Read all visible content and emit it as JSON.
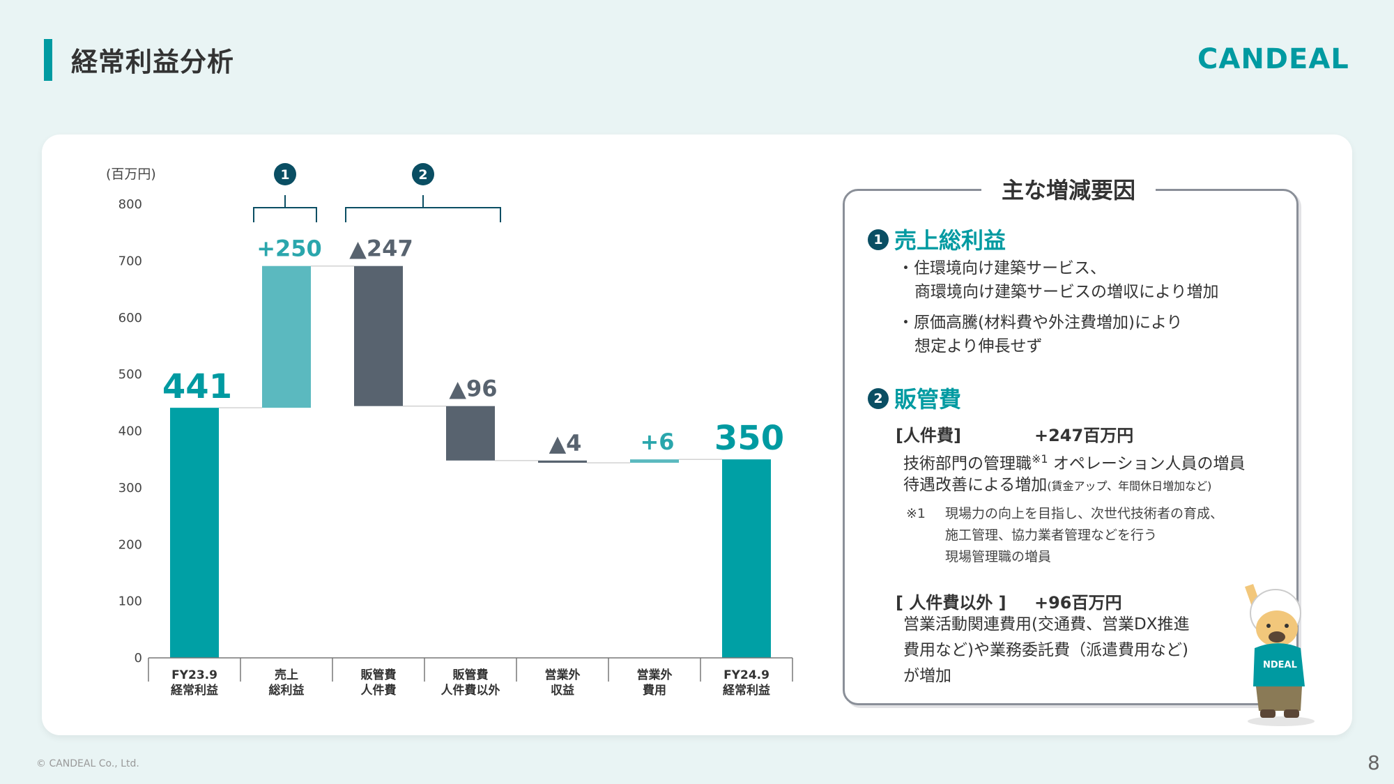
{
  "header": {
    "title": "経常利益分析",
    "logo_text": "CANDEAL"
  },
  "chart_data": {
    "type": "waterfall",
    "unit_label": "(百万円)",
    "ylim": [
      0,
      800
    ],
    "yticks": [
      0,
      100,
      200,
      300,
      400,
      500,
      600,
      700,
      800
    ],
    "categories": [
      {
        "l1": "FY23.9",
        "l2": "経常利益"
      },
      {
        "l1": "売上",
        "l2": "総利益"
      },
      {
        "l1": "販管費",
        "l2": "人件費"
      },
      {
        "l1": "販管費",
        "l2": "人件費以外"
      },
      {
        "l1": "営業外",
        "l2": "収益"
      },
      {
        "l1": "営業外",
        "l2": "費用"
      },
      {
        "l1": "FY24.9",
        "l2": "経常利益"
      }
    ],
    "bars": [
      {
        "kind": "total",
        "start": 0,
        "end": 441,
        "label": "441",
        "color": "#00a0a5"
      },
      {
        "kind": "increase",
        "start": 441,
        "end": 691,
        "label": "+250",
        "color": "#5bb9bf"
      },
      {
        "kind": "decrease",
        "start": 691,
        "end": 444,
        "label": "▲247",
        "color": "#58636f"
      },
      {
        "kind": "decrease",
        "start": 444,
        "end": 348,
        "label": "▲96",
        "color": "#58636f"
      },
      {
        "kind": "decrease",
        "start": 348,
        "end": 344,
        "label": "▲4",
        "color": "#58636f"
      },
      {
        "kind": "increase",
        "start": 344,
        "end": 350,
        "label": "+6",
        "color": "#5bb9bf"
      },
      {
        "kind": "total",
        "start": 0,
        "end": 350,
        "label": "350",
        "color": "#00a0a5"
      }
    ],
    "groups": [
      {
        "num": "1",
        "from": 1,
        "to": 1
      },
      {
        "num": "2",
        "from": 2,
        "to": 3
      }
    ]
  },
  "panel": {
    "title": "主な増減要因",
    "section1": {
      "num": "1",
      "heading": "売上総利益",
      "bullet1_line1": "・住環境向け建築サービス、",
      "bullet1_line2": "商環境向け建築サービスの増収により増加",
      "bullet2_line1": "・原価高騰(材料費や外注費増加)により",
      "bullet2_line2": "想定より伸長せず"
    },
    "section2": {
      "num": "2",
      "heading": "販管費",
      "sub1_label": "[人件費]",
      "sub1_value": "+247百万円",
      "sub1_line1": "技術部門の管理職",
      "sub1_sup": "※1",
      "sub1_line1b": "オペレーション人員の増員",
      "sub1_line2": "待遇改善による増加",
      "sub1_line2_small": "(賃金アップ、年間休日増加など)",
      "note_mark": "※1",
      "note_line1": "現場力の向上を目指し、次世代技術者の育成、",
      "note_line2": "施工管理、協力業者管理などを行う",
      "note_line3": "現場管理職の増員",
      "sub2_label": "[ 人件費以外 ]",
      "sub2_value": "+96百万円",
      "sub2_line1": "営業活動関連費用(交通費、営業DX推進",
      "sub2_line2": "費用など)や業務委託費（派遣費用など)",
      "sub2_line3": "が増加"
    },
    "mascot_shirt": "NDEAL"
  },
  "footer": {
    "copyright": "© CANDEAL Co., Ltd.",
    "page_number": "8"
  }
}
